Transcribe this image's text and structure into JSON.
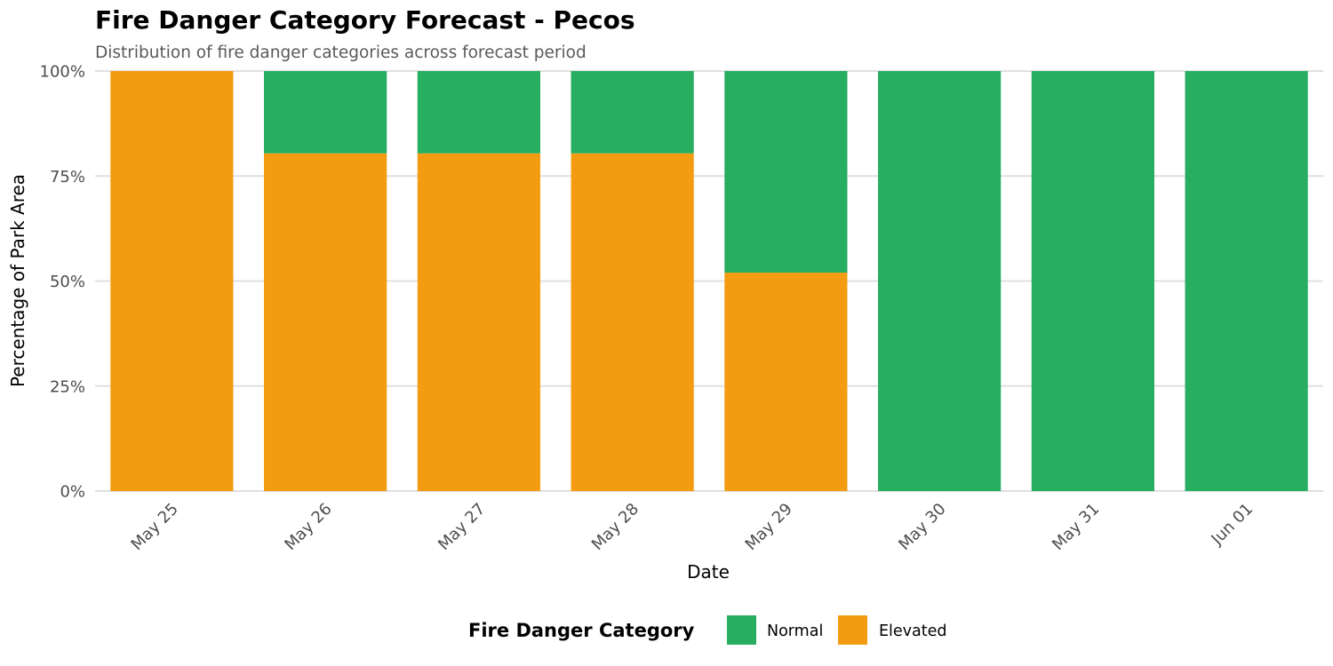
{
  "chart_data": {
    "type": "bar",
    "stacked": true,
    "title": "Fire Danger Category Forecast - Pecos",
    "subtitle": "Distribution of fire danger categories across forecast period",
    "xlabel": "Date",
    "ylabel": "Percentage of Park Area",
    "ylim": [
      0,
      100
    ],
    "yticks": [
      "0%",
      "25%",
      "50%",
      "75%",
      "100%"
    ],
    "ytick_values": [
      0,
      25,
      50,
      75,
      100
    ],
    "categories": [
      "May 25",
      "May 26",
      "May 27",
      "May 28",
      "May 29",
      "May 30",
      "May 31",
      "Jun 01"
    ],
    "series": [
      {
        "name": "Elevated",
        "color": "#F39C12",
        "values": [
          100,
          80.4,
          80.4,
          80.4,
          52,
          0,
          0,
          0
        ]
      },
      {
        "name": "Normal",
        "color": "#27AE60",
        "values": [
          0,
          19.6,
          19.6,
          19.6,
          48,
          100,
          100,
          100
        ]
      }
    ],
    "legend": {
      "title": "Fire Danger Category",
      "position": "bottom",
      "items": [
        {
          "label": "Normal",
          "color": "#27AE60"
        },
        {
          "label": "Elevated",
          "color": "#F39C12"
        }
      ]
    },
    "grid": true
  }
}
